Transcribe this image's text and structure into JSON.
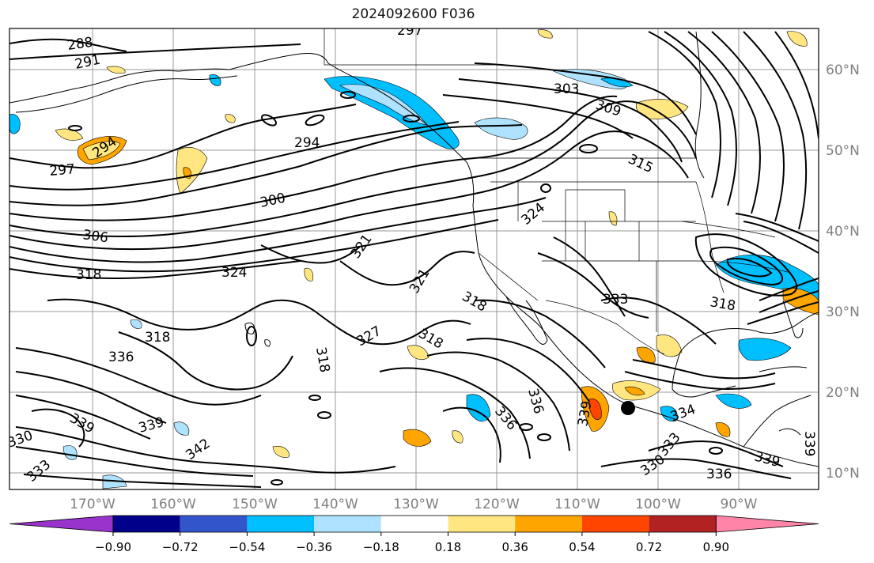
{
  "title": "2024092600 F036",
  "lat_labels": [
    "60°N",
    "50°N",
    "40°N",
    "30°N",
    "20°N",
    "10°N"
  ],
  "lon_labels": [
    "170°W",
    "160°W",
    "150°W",
    "140°W",
    "130°W",
    "120°W",
    "110°W",
    "100°W",
    "90°W"
  ],
  "contour_labels": [
    "288",
    "291",
    "294",
    "297",
    "294",
    "300",
    "303",
    "309",
    "315",
    "306",
    "318",
    "324",
    "324",
    "321",
    "321",
    "318",
    "333",
    "318",
    "318",
    "327",
    "318",
    "336",
    "318",
    "336",
    "339",
    "339",
    "342",
    "330",
    "333",
    "336",
    "339",
    "339",
    "334",
    "330",
    "333",
    "336",
    "339",
    "297"
  ],
  "colorbar": {
    "ticks": [
      "−0.90",
      "−0.72",
      "−0.54",
      "−0.36",
      "−0.18",
      "0.18",
      "0.36",
      "0.54",
      "0.72",
      "0.90"
    ],
    "colors": [
      "#9933cc",
      "#00008b",
      "#3355cc",
      "#00bfff",
      "#aee2ff",
      "#ffffff",
      "#ffe680",
      "#ffa500",
      "#ff4500",
      "#b22222",
      "#ff85a8"
    ]
  }
}
